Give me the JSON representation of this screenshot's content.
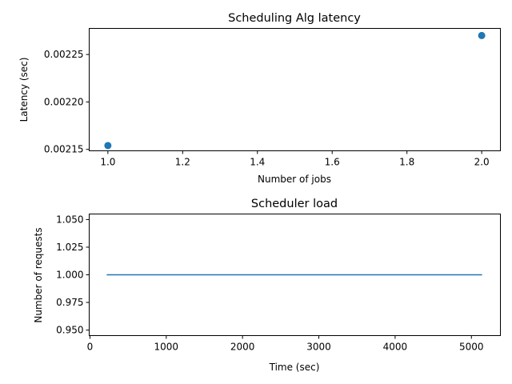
{
  "chart_data": [
    {
      "type": "scatter",
      "title": "Scheduling Alg latency",
      "xlabel": "Number of jobs",
      "ylabel": "Latency (sec)",
      "x": [
        1.0,
        2.0
      ],
      "y": [
        0.002154,
        0.00227
      ],
      "xlim": [
        0.95,
        2.05
      ],
      "ylim": [
        0.0021485,
        0.0022775
      ],
      "xticks": [
        1.0,
        1.2,
        1.4,
        1.6,
        1.8,
        2.0
      ],
      "xticklabels": [
        "1.0",
        "1.2",
        "1.4",
        "1.6",
        "1.8",
        "2.0"
      ],
      "yticks": [
        0.00215,
        0.0022,
        0.00225
      ],
      "yticklabels": [
        "0.00215",
        "0.00220",
        "0.00225"
      ],
      "grid": false,
      "color": "#1f77b4"
    },
    {
      "type": "line",
      "title": "Scheduler load",
      "xlabel": "Time (sec)",
      "ylabel": "Number of requests",
      "x": [
        220,
        5140
      ],
      "y": [
        1.0,
        1.0
      ],
      "xlim": [
        -10,
        5380
      ],
      "ylim": [
        0.945,
        1.055
      ],
      "xticks": [
        0,
        1000,
        2000,
        3000,
        4000,
        5000
      ],
      "xticklabels": [
        "0",
        "1000",
        "2000",
        "3000",
        "4000",
        "5000"
      ],
      "yticks": [
        0.95,
        0.975,
        1.0,
        1.025,
        1.05
      ],
      "yticklabels": [
        "0.950",
        "0.975",
        "1.000",
        "1.025",
        "1.050"
      ],
      "grid": false,
      "color": "#1f77b4"
    }
  ]
}
